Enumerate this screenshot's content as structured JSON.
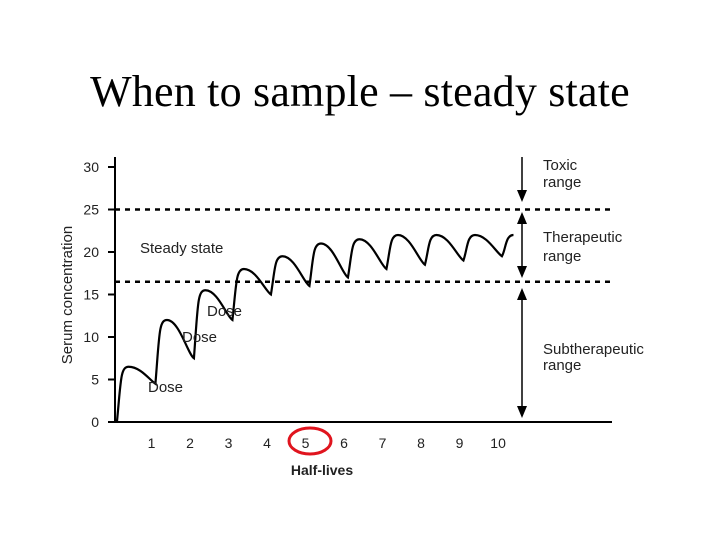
{
  "slide": {
    "title": "When to sample – steady state"
  },
  "chart_data": {
    "type": "line",
    "xlabel": "Half-lives",
    "ylabel": "Serum concentration",
    "x_ticks": [
      1,
      2,
      3,
      4,
      5,
      6,
      7,
      8,
      9,
      10
    ],
    "y_ticks": [
      0,
      5,
      10,
      15,
      20,
      25,
      30
    ],
    "xlim": [
      0,
      12
    ],
    "ylim": [
      0,
      30
    ],
    "grid": false,
    "threshold_lines": [
      {
        "value": 25,
        "style": "dotted"
      },
      {
        "value": 16.5,
        "style": "dotted"
      }
    ],
    "ranges": [
      {
        "label_lines": [
          "Toxic",
          "range"
        ],
        "from": 25,
        "to": 30
      },
      {
        "label_lines": [
          "Therapeutic",
          "range"
        ],
        "from": 16.5,
        "to": 25
      },
      {
        "label_lines": [
          "Subtherapeutic",
          "range"
        ],
        "from": 0,
        "to": 16.5
      }
    ],
    "annotations": [
      {
        "text": "Steady state"
      },
      {
        "text": "Dose"
      },
      {
        "text": "Dose"
      },
      {
        "text": "Dose"
      }
    ],
    "highlighted_tick": 5,
    "series": [
      {
        "peaks": [
          6.5,
          12,
          15.5,
          18,
          19.5,
          21,
          21.5,
          22,
          22,
          22,
          22
        ],
        "troughs": [
          0,
          4.5,
          7.5,
          12,
          15,
          16,
          17,
          18,
          18.5,
          19,
          19.5,
          19.5
        ]
      }
    ]
  }
}
